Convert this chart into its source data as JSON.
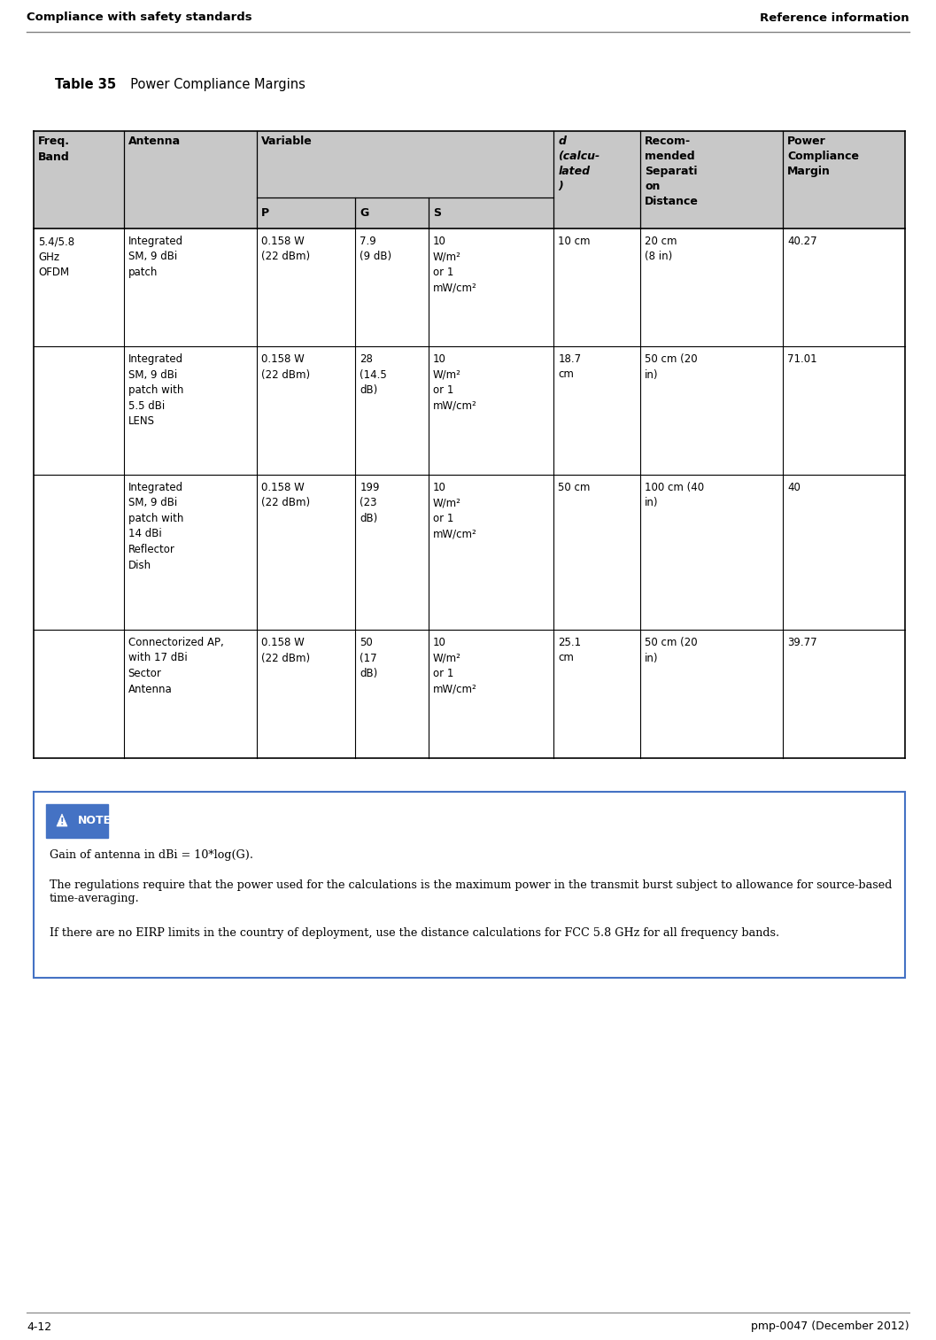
{
  "page_header_left": "Compliance with safety standards",
  "page_header_right": "Reference information",
  "page_footer_left": "4-12",
  "page_footer_right": "pmp-0047 (December 2012)",
  "table_title_bold": "Table 35",
  "table_title_normal": "  Power Compliance Margins",
  "header_bg": "#c8c8c8",
  "note_border_color": "#4472c4",
  "note_icon_bg": "#4472c4",
  "note_icon_text_color": "#ffffff",
  "note_text_color": "#000000",
  "rows": [
    [
      "5.4/5.8\nGHz\nOFDM",
      "Integrated\nSM, 9 dBi\npatch",
      "0.158 W\n(22 dBm)",
      "7.9\n(9 dB)",
      "10\nW/m²\nor 1\nmW/cm²",
      "10 cm",
      "20 cm\n(8 in)",
      "40.27"
    ],
    [
      "",
      "Integrated\nSM, 9 dBi\npatch with\n5.5 dBi\nLENS",
      "0.158 W\n(22 dBm)",
      "28\n(14.5\ndB)",
      "10\nW/m²\nor 1\nmW/cm²",
      "18.7\ncm",
      "50 cm (20\nin)",
      "71.01"
    ],
    [
      "",
      "Integrated\nSM, 9 dBi\npatch with\n14 dBi\nReflector\nDish",
      "0.158 W\n(22 dBm)",
      "199\n(23\ndB)",
      "10\nW/m²\nor 1\nmW/cm²",
      "50 cm",
      "100 cm (40\nin)",
      "40"
    ],
    [
      "",
      "Connectorized AP,\nwith 17 dBi\nSector\nAntenna",
      "0.158 W\n(22 dBm)",
      "50\n(17\ndB)",
      "10\nW/m²\nor 1\nmW/cm²",
      "25.1\ncm",
      "50 cm (20\nin)",
      "39.77"
    ]
  ],
  "note_lines": [
    "Gain of antenna in dBi = 10*log(G).",
    "The regulations require that the power used for the calculations is the maximum power in the transmit burst subject to allowance for source-based time-averaging.",
    "If there are no EIRP limits in the country of deployment, use the distance calculations for FCC 5.8 GHz for all frequency bands."
  ]
}
